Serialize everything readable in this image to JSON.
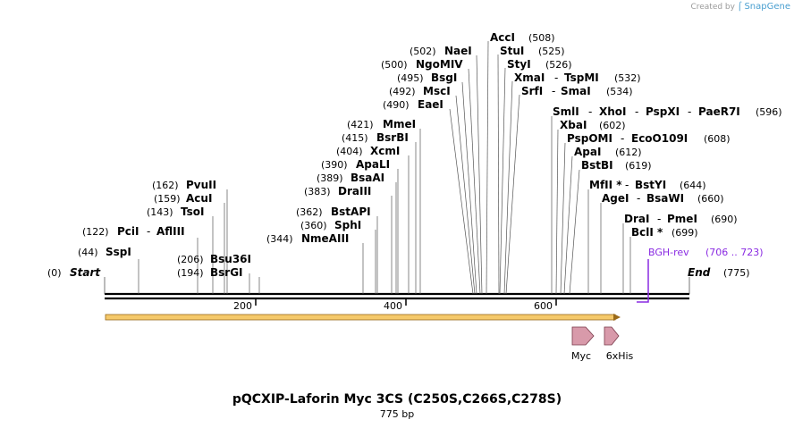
{
  "credit": {
    "prefix": "Created by",
    "brand": "SnapGene"
  },
  "map": {
    "title": "pQCXIP-Laforin Myc 3CS (C250S,C266S,C278S)",
    "length_label": "775 bp",
    "start_label": "Start",
    "start_pos": "(0)",
    "end_label": "End",
    "end_pos": "(775)",
    "ticks": [
      "200",
      "400",
      "600"
    ],
    "primer": {
      "name": "BGH-rev",
      "range": "(706 .. 723)",
      "color": "#8a2be2"
    },
    "orf_color": "#f5c96a",
    "feature_color": "#d89aaa",
    "features": [
      {
        "label": "Myc"
      },
      {
        "label": "6xHis"
      }
    ],
    "sites": [
      {
        "pos": "(44)",
        "names": "SspI"
      },
      {
        "pos": "(122)",
        "names": "PciI",
        "names2": "AflIII"
      },
      {
        "pos": "(143)",
        "names": "TsoI"
      },
      {
        "pos": "(159)",
        "names": "AcuI"
      },
      {
        "pos": "(162)",
        "names": "PvuII"
      },
      {
        "pos": "(194)",
        "names": "BsrGI"
      },
      {
        "pos": "(206)",
        "names": "Bsu36I"
      },
      {
        "pos": "(344)",
        "names": "NmeAIII"
      },
      {
        "pos": "(360)",
        "names": "SphI"
      },
      {
        "pos": "(362)",
        "names": "BstAPI"
      },
      {
        "pos": "(383)",
        "names": "DraIII"
      },
      {
        "pos": "(389)",
        "names": "BsaAI"
      },
      {
        "pos": "(390)",
        "names": "ApaLI"
      },
      {
        "pos": "(404)",
        "names": "XcmI"
      },
      {
        "pos": "(415)",
        "names": "BsrBI"
      },
      {
        "pos": "(421)",
        "names": "MmeI"
      },
      {
        "pos": "(490)",
        "names": "EaeI"
      },
      {
        "pos": "(492)",
        "names": "MscI"
      },
      {
        "pos": "(495)",
        "names": "BsgI"
      },
      {
        "pos": "(500)",
        "names": "NgoMIV"
      },
      {
        "pos": "(502)",
        "names": "NaeI"
      },
      {
        "pos": "(508)",
        "names": "AccI"
      },
      {
        "pos": "(525)",
        "names": "StuI"
      },
      {
        "pos": "(526)",
        "names": "StyI"
      },
      {
        "pos": "(532)",
        "names": "XmaI",
        "names2": "TspMI"
      },
      {
        "pos": "(534)",
        "names": "SrfI",
        "names2": "SmaI"
      },
      {
        "pos": "(596)",
        "names": "SmlI",
        "names2": "XhoI",
        "names3": "PspXI",
        "names4": "PaeR7I"
      },
      {
        "pos": "(602)",
        "names": "XbaI"
      },
      {
        "pos": "(608)",
        "names": "PspOMI",
        "names2": "EcoO109I"
      },
      {
        "pos": "(612)",
        "names": "ApaI"
      },
      {
        "pos": "(619)",
        "names": "BstBI"
      },
      {
        "pos": "(644)",
        "names": "MfII *",
        "names2": "BstYI"
      },
      {
        "pos": "(660)",
        "names": "AgeI",
        "names2": "BsaWI"
      },
      {
        "pos": "(690)",
        "names": "DraI",
        "names2": "PmeI"
      },
      {
        "pos": "(699)",
        "names": "BclI *"
      }
    ]
  }
}
